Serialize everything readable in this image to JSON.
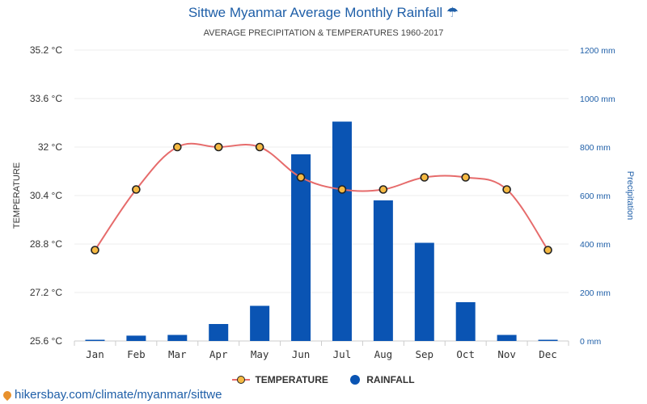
{
  "header": {
    "title": "Sittwe Myanmar Average Monthly Rainfall",
    "title_icon": "umbrella-icon",
    "subtitle": "AVERAGE PRECIPITATION & TEMPERATURES 1960-2017"
  },
  "legend": {
    "temperature_label": "TEMPERATURE",
    "rainfall_label": "RAINFALL"
  },
  "source": {
    "text": "hikersbay.com/climate/myanmar/sittwe",
    "icon": "map-pin-icon"
  },
  "colors": {
    "title": "#1f5fa8",
    "temperature_line": "#e66b6b",
    "temperature_marker": "#f5b942",
    "rainfall_bar": "#0a54b3",
    "right_axis": "#1f5fa8"
  },
  "chart_data": {
    "type": "bar",
    "title": "Sittwe Myanmar Average Monthly Rainfall",
    "subtitle": "AVERAGE PRECIPITATION & TEMPERATURES 1960-2017",
    "categories": [
      "Jan",
      "Feb",
      "Mar",
      "Apr",
      "May",
      "Jun",
      "Jul",
      "Aug",
      "Sep",
      "Oct",
      "Nov",
      "Dec"
    ],
    "series": [
      {
        "name": "TEMPERATURE",
        "type": "line",
        "axis": "left",
        "unit": "°C",
        "values": [
          28.6,
          30.6,
          32,
          32,
          32,
          31,
          30.6,
          30.6,
          31,
          31,
          30.6,
          28.6
        ]
      },
      {
        "name": "RAINFALL",
        "type": "bar",
        "axis": "right",
        "unit": "mm",
        "values": [
          5,
          22,
          25,
          70,
          145,
          770,
          905,
          580,
          405,
          160,
          25,
          5
        ]
      }
    ],
    "ylabel_left": "TEMPERATURE",
    "ylabel_right": "Precipitation",
    "ylim_left": [
      25.6,
      35.2
    ],
    "ylim_right": [
      0,
      1200
    ],
    "yticks_left": [
      "35.2 °C",
      "33.6 °C",
      "32 °C",
      "30.4 °C",
      "28.8 °C",
      "27.2 °C",
      "25.6 °C"
    ],
    "yticks_right": [
      "1200 mm",
      "1000 mm",
      "800 mm",
      "600 mm",
      "400 mm",
      "200 mm",
      "0 mm"
    ],
    "grid": true,
    "legend_position": "bottom"
  }
}
